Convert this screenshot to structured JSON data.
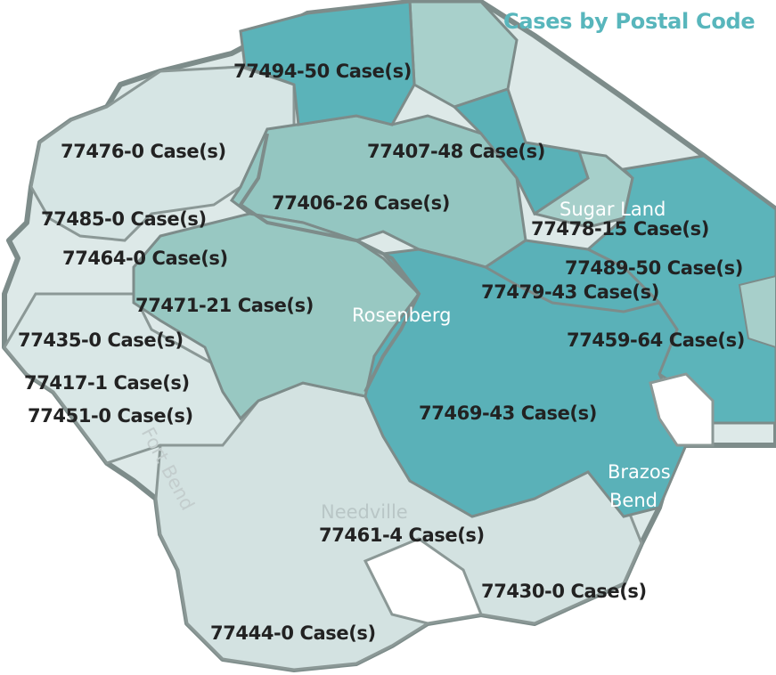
{
  "title": "Cases by Postal Code",
  "legend_colors": {
    "high": "#5bb3b9",
    "mid": "#95c7c2",
    "low": "#d3e3e2",
    "border": "#7d8c8a"
  },
  "zip_labels": [
    {
      "zip": "77494",
      "cases": 50,
      "text": "77494-50 Case(s)"
    },
    {
      "zip": "77476",
      "cases": 0,
      "text": "77476-0 Case(s)"
    },
    {
      "zip": "77407",
      "cases": 48,
      "text": "77407-48 Case(s)"
    },
    {
      "zip": "77406",
      "cases": 26,
      "text": "77406-26 Case(s)"
    },
    {
      "zip": "77485",
      "cases": 0,
      "text": "77485-0 Case(s)"
    },
    {
      "zip": "77478",
      "cases": 15,
      "text": "77478-15 Case(s)"
    },
    {
      "zip": "77464",
      "cases": 0,
      "text": "77464-0 Case(s)"
    },
    {
      "zip": "77489",
      "cases": 50,
      "text": "77489-50 Case(s)"
    },
    {
      "zip": "77479",
      "cases": 43,
      "text": "77479-43 Case(s)"
    },
    {
      "zip": "77471",
      "cases": 21,
      "text": "77471-21 Case(s)"
    },
    {
      "zip": "77435",
      "cases": 0,
      "text": "77435-0 Case(s)"
    },
    {
      "zip": "77459",
      "cases": 64,
      "text": "77459-64 Case(s)"
    },
    {
      "zip": "77417",
      "cases": 1,
      "text": "77417-1 Case(s)"
    },
    {
      "zip": "77451",
      "cases": 0,
      "text": "77451-0 Case(s)"
    },
    {
      "zip": "77469",
      "cases": 43,
      "text": "77469-43 Case(s)"
    },
    {
      "zip": "77461",
      "cases": 4,
      "text": "77461-4 Case(s)"
    },
    {
      "zip": "77430",
      "cases": 0,
      "text": "77430-0 Case(s)"
    },
    {
      "zip": "77444",
      "cases": 0,
      "text": "77444-0 Case(s)"
    }
  ],
  "places": {
    "sugar_land": "Sugar Land",
    "rosenberg": "Rosenberg",
    "brazos_line1": "Brazos",
    "brazos_line2": "Bend",
    "needville": "Needville",
    "fort_bend": "Fort Bend"
  }
}
